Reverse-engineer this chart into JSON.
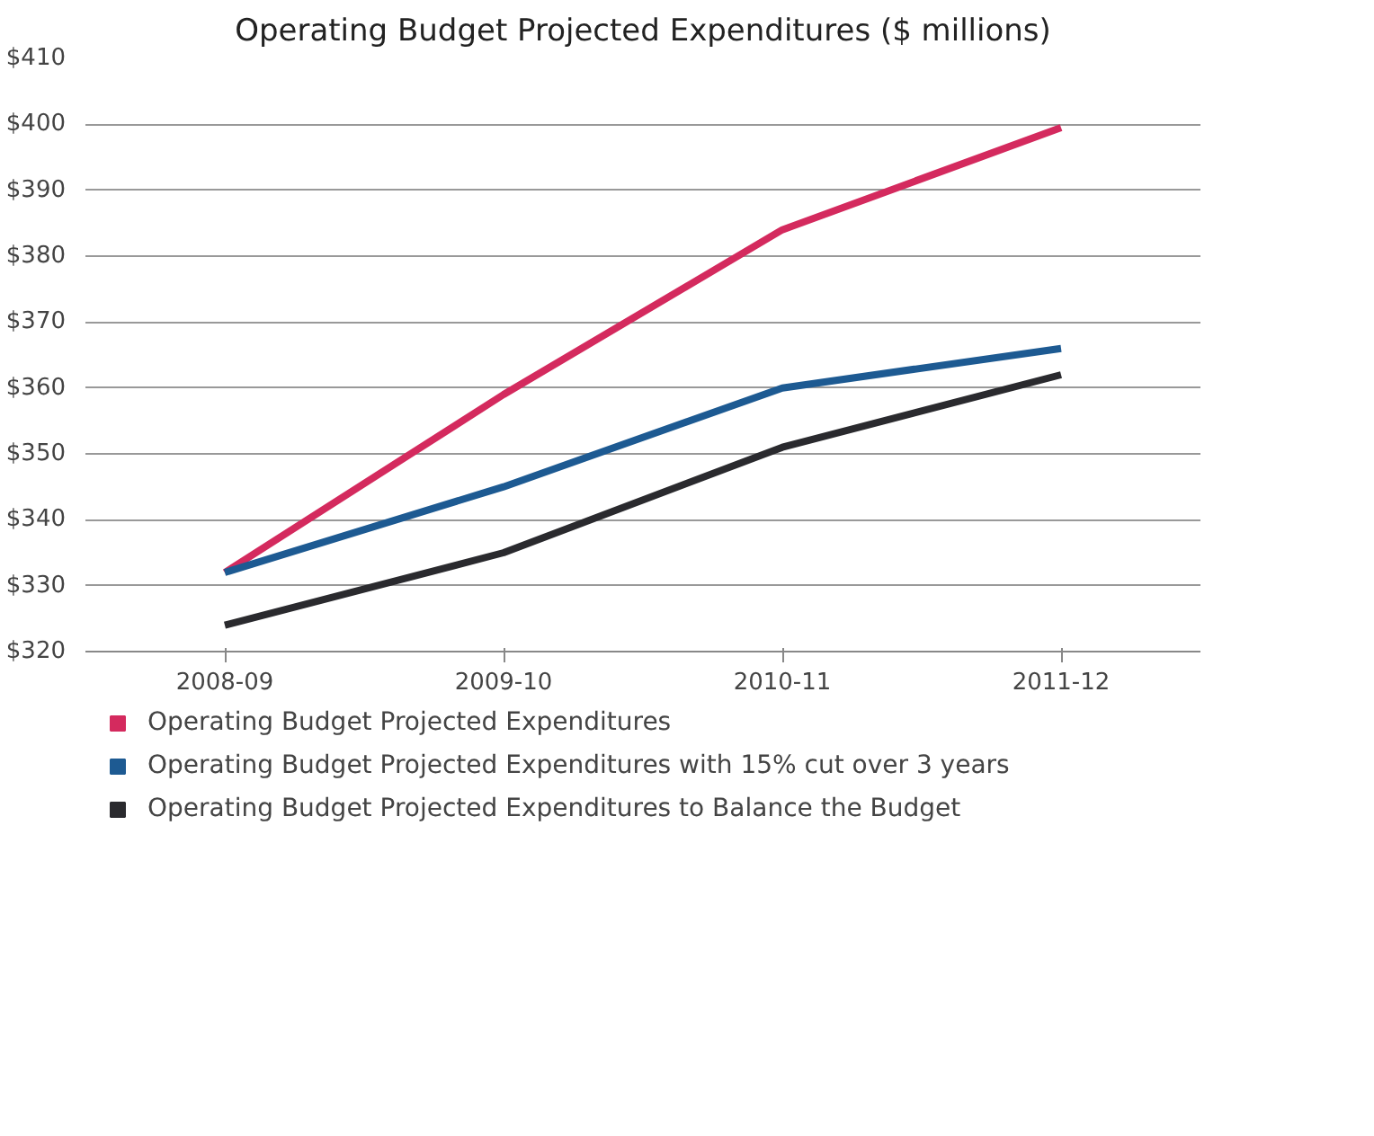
{
  "chart_data": {
    "type": "line",
    "title": "Operating Budget Projected Expenditures ($ millions)",
    "categories": [
      "2008-09",
      "2009-10",
      "2010-11",
      "2011-12"
    ],
    "series": [
      {
        "name": "Operating Budget Projected Expenditures",
        "color": "#d42a5e",
        "values": [
          332,
          359,
          384,
          399.5
        ]
      },
      {
        "name": "Operating Budget Projected Expenditures with 15% cut over 3 years",
        "color": "#1d5a92",
        "values": [
          332,
          345,
          360,
          366
        ]
      },
      {
        "name": "Operating Budget Projected Expenditures to Balance the Budget",
        "color": "#2a2a2e",
        "values": [
          324,
          335,
          351,
          362
        ]
      }
    ],
    "ylim": [
      320,
      410
    ],
    "yticks": [
      {
        "value": 320,
        "label": "$320"
      },
      {
        "value": 330,
        "label": "$330"
      },
      {
        "value": 340,
        "label": "$340"
      },
      {
        "value": 350,
        "label": "$350"
      },
      {
        "value": 360,
        "label": "$360"
      },
      {
        "value": 370,
        "label": "$370"
      },
      {
        "value": 380,
        "label": "$380"
      },
      {
        "value": 390,
        "label": "$390"
      },
      {
        "value": 400,
        "label": "$400"
      },
      {
        "value": 410,
        "label": "$410"
      }
    ],
    "grid": "y",
    "legend": "bottom",
    "marker": "none",
    "line_style": "solid"
  }
}
